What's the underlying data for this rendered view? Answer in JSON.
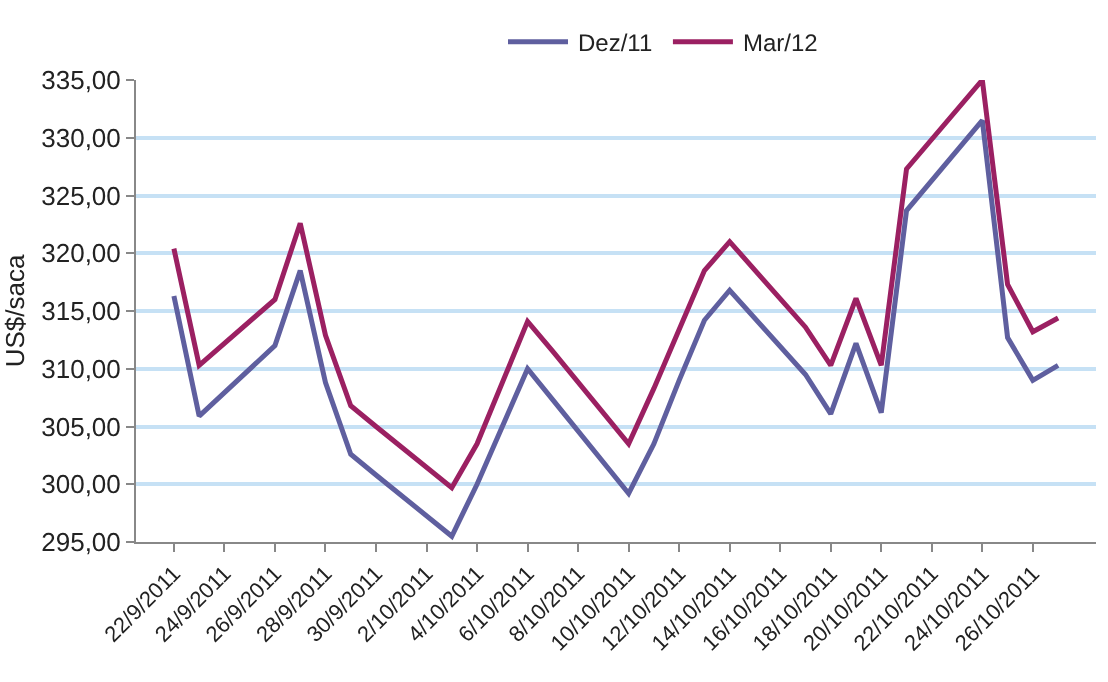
{
  "chart_data": {
    "type": "line",
    "ylabel": "US$/saca",
    "x": [
      "2011-09-22",
      "2011-09-23",
      "2011-09-26",
      "2011-09-27",
      "2011-09-28",
      "2011-09-29",
      "2011-09-30",
      "2011-10-03",
      "2011-10-04",
      "2011-10-06",
      "2011-10-07",
      "2011-10-10",
      "2011-10-11",
      "2011-10-12",
      "2011-10-13",
      "2011-10-14",
      "2011-10-17",
      "2011-10-18",
      "2011-10-19",
      "2011-10-20",
      "2011-10-21",
      "2011-10-24",
      "2011-10-25",
      "2011-10-26",
      "2011-10-27"
    ],
    "series": [
      {
        "name": "Dez/11",
        "color": "#5f5f9f",
        "values": [
          316.3,
          305.9,
          312.0,
          318.5,
          308.8,
          302.6,
          300.8,
          295.5,
          300.0,
          310.0,
          307.3,
          299.2,
          303.5,
          309.0,
          314.2,
          316.8,
          309.5,
          306.1,
          312.2,
          306.2,
          323.7,
          331.5,
          312.7,
          309.0,
          310.3
        ]
      },
      {
        "name": "Mar/12",
        "color": "#9b2062",
        "values": [
          320.4,
          310.3,
          316.0,
          322.6,
          312.9,
          306.8,
          305.0,
          299.7,
          303.5,
          314.1,
          311.5,
          303.5,
          308.3,
          313.4,
          318.5,
          321.0,
          313.6,
          310.3,
          316.1,
          310.3,
          327.3,
          335.0,
          317.3,
          313.2,
          314.4
        ]
      }
    ],
    "xlim": [
      "2011-09-20T12:00",
      "2011-10-28T12:00"
    ],
    "xticks": [
      {
        "value": "2011-09-22",
        "label": "22/9/2011"
      },
      {
        "value": "2011-09-24",
        "label": "24/9/2011"
      },
      {
        "value": "2011-09-26",
        "label": "26/9/2011"
      },
      {
        "value": "2011-09-28",
        "label": "28/9/2011"
      },
      {
        "value": "2011-09-30",
        "label": "30/9/2011"
      },
      {
        "value": "2011-10-02",
        "label": "2/10/2011"
      },
      {
        "value": "2011-10-04",
        "label": "4/10/2011"
      },
      {
        "value": "2011-10-06",
        "label": "6/10/2011"
      },
      {
        "value": "2011-10-08",
        "label": "8/10/2011"
      },
      {
        "value": "2011-10-10",
        "label": "10/10/2011"
      },
      {
        "value": "2011-10-12",
        "label": "12/10/2011"
      },
      {
        "value": "2011-10-14",
        "label": "14/10/2011"
      },
      {
        "value": "2011-10-16",
        "label": "16/10/2011"
      },
      {
        "value": "2011-10-18",
        "label": "18/10/2011"
      },
      {
        "value": "2011-10-20",
        "label": "20/10/2011"
      },
      {
        "value": "2011-10-22",
        "label": "22/10/2011"
      },
      {
        "value": "2011-10-24",
        "label": "24/10/2011"
      },
      {
        "value": "2011-10-26",
        "label": "26/10/2011"
      }
    ],
    "ylim": [
      295,
      335
    ],
    "yticks": [
      {
        "value": 295,
        "label": "295,00"
      },
      {
        "value": 300,
        "label": "300,00"
      },
      {
        "value": 305,
        "label": "305,00"
      },
      {
        "value": 310,
        "label": "310,00"
      },
      {
        "value": 315,
        "label": "315,00"
      },
      {
        "value": 320,
        "label": "320,00"
      },
      {
        "value": 325,
        "label": "325,00"
      },
      {
        "value": 330,
        "label": "330,00"
      },
      {
        "value": 335,
        "label": "335,00"
      }
    ],
    "grid": "y",
    "legend": "top",
    "marker": "none",
    "line_style": "solid"
  }
}
